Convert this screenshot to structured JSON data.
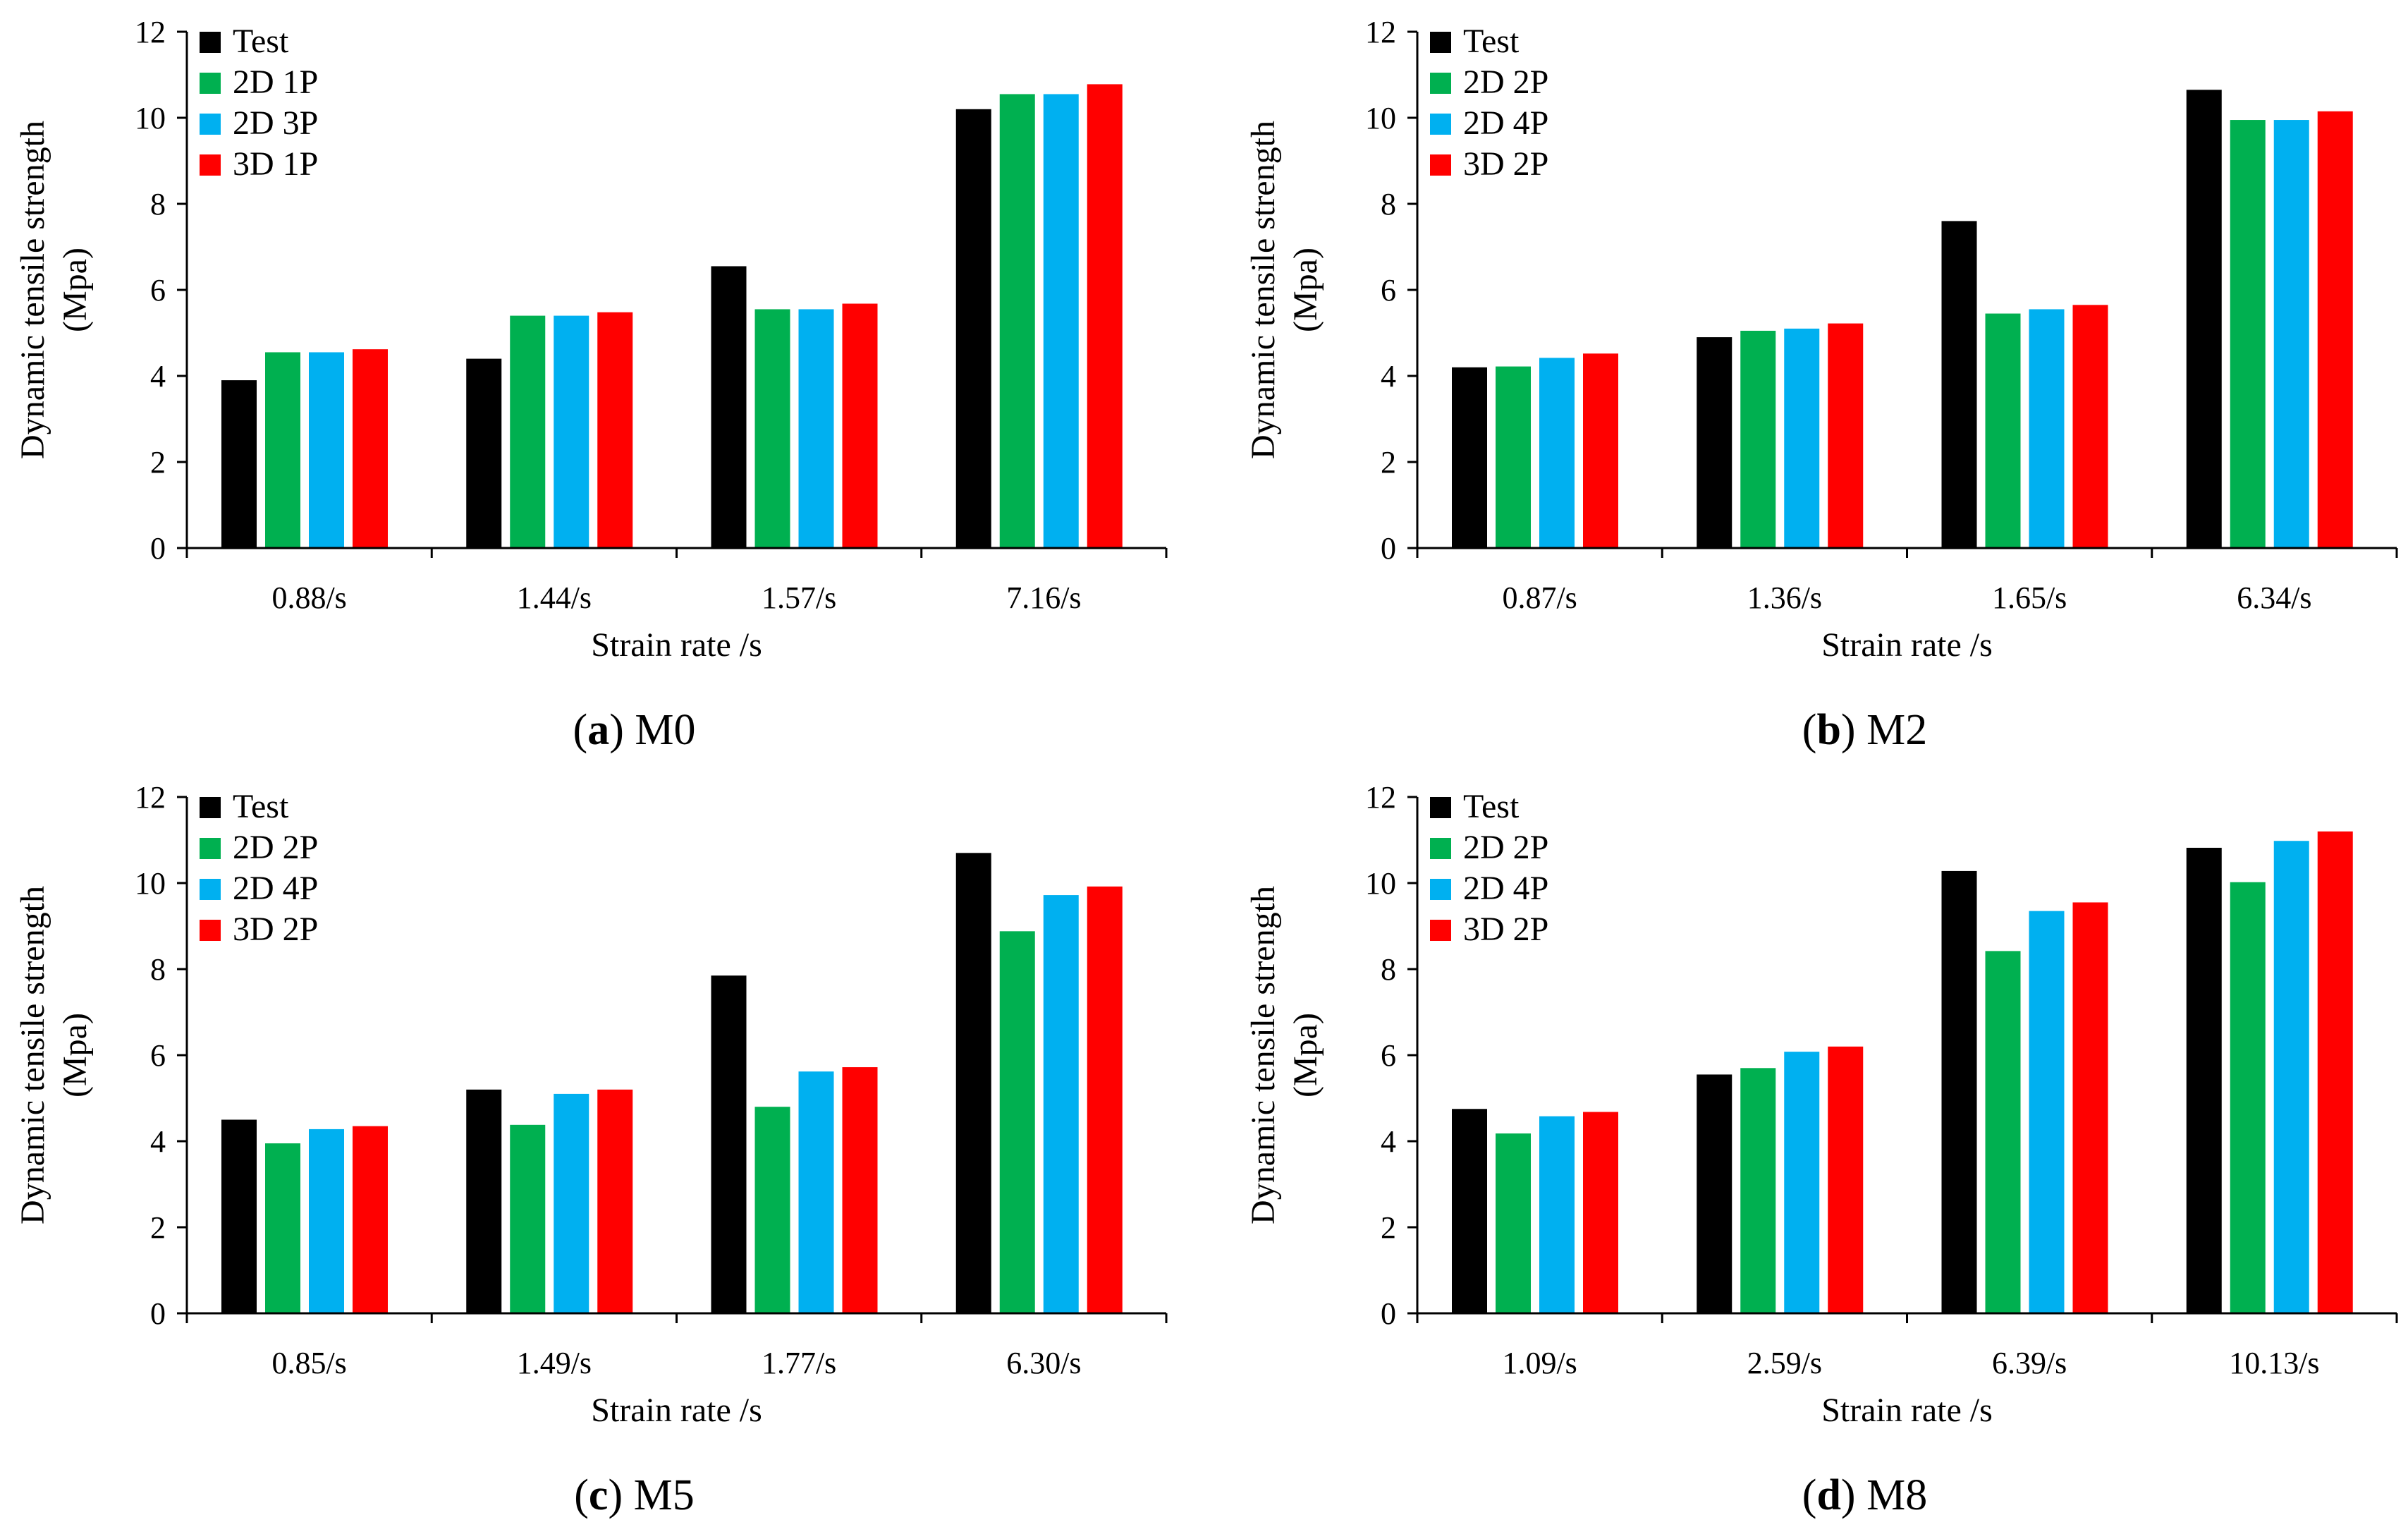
{
  "chart_data": [
    {
      "type": "bar",
      "caption": {
        "open": "(",
        "letter": "a",
        "close": ")",
        "name": "M0"
      },
      "categories": [
        "0.88/s",
        "1.44/s",
        "1.57/s",
        "7.16/s"
      ],
      "series": [
        {
          "name": "Test",
          "color": "#000000",
          "values": [
            3.9,
            4.4,
            6.55,
            10.2
          ]
        },
        {
          "name": "2D 1P",
          "color": "#00b050",
          "values": [
            4.55,
            5.4,
            5.55,
            10.55
          ]
        },
        {
          "name": "2D 3P",
          "color": "#00b0f0",
          "values": [
            4.55,
            5.4,
            5.55,
            10.55
          ]
        },
        {
          "name": "3D 1P",
          "color": "#ff0000",
          "values": [
            4.62,
            5.48,
            5.68,
            10.78
          ]
        }
      ],
      "xlabel": "Strain rate /s",
      "ylabel": [
        "Dynamic tensile strength",
        "(Mpa)"
      ],
      "ylim": [
        0,
        12
      ],
      "yticks": [
        "0",
        "2",
        "4",
        "6",
        "8",
        "10",
        "12"
      ],
      "legend": "top-left"
    },
    {
      "type": "bar",
      "caption": {
        "open": "(",
        "letter": "b",
        "close": ")",
        "name": "M2"
      },
      "categories": [
        "0.87/s",
        "1.36/s",
        "1.65/s",
        "6.34/s"
      ],
      "series": [
        {
          "name": "Test",
          "color": "#000000",
          "values": [
            4.2,
            4.9,
            7.6,
            10.65
          ]
        },
        {
          "name": "2D 2P",
          "color": "#00b050",
          "values": [
            4.22,
            5.05,
            5.45,
            9.95
          ]
        },
        {
          "name": "2D 4P",
          "color": "#00b0f0",
          "values": [
            4.42,
            5.1,
            5.55,
            9.95
          ]
        },
        {
          "name": "3D 2P",
          "color": "#ff0000",
          "values": [
            4.52,
            5.22,
            5.65,
            10.15
          ]
        }
      ],
      "xlabel": "Strain rate /s",
      "ylabel": [
        "Dynamic tensile strength",
        "(Mpa)"
      ],
      "ylim": [
        0,
        12
      ],
      "yticks": [
        "0",
        "2",
        "4",
        "6",
        "8",
        "10",
        "12"
      ],
      "legend": "top-left"
    },
    {
      "type": "bar",
      "caption": {
        "open": "(",
        "letter": "c",
        "close": ")",
        "name": "M5"
      },
      "categories": [
        "0.85/s",
        "1.49/s",
        "1.77/s",
        "6.30/s"
      ],
      "series": [
        {
          "name": "Test",
          "color": "#000000",
          "values": [
            4.5,
            5.2,
            7.85,
            10.7
          ]
        },
        {
          "name": "2D 2P",
          "color": "#00b050",
          "values": [
            3.95,
            4.38,
            4.8,
            8.88
          ]
        },
        {
          "name": "2D 4P",
          "color": "#00b0f0",
          "values": [
            4.28,
            5.1,
            5.62,
            9.72
          ]
        },
        {
          "name": "3D 2P",
          "color": "#ff0000",
          "values": [
            4.35,
            5.2,
            5.72,
            9.92
          ]
        }
      ],
      "xlabel": "Strain rate /s",
      "ylabel": [
        "Dynamic tensile strength",
        "(Mpa)"
      ],
      "ylim": [
        0,
        12
      ],
      "yticks": [
        "0",
        "2",
        "4",
        "6",
        "8",
        "10",
        "12"
      ],
      "legend": "top-left"
    },
    {
      "type": "bar",
      "caption": {
        "open": "(",
        "letter": "d",
        "close": ")",
        "name": "M8"
      },
      "categories": [
        "1.09/s",
        "2.59/s",
        "6.39/s",
        "10.13/s"
      ],
      "series": [
        {
          "name": "Test",
          "color": "#000000",
          "values": [
            4.75,
            5.55,
            10.28,
            10.82
          ]
        },
        {
          "name": "2D 2P",
          "color": "#00b050",
          "values": [
            4.18,
            5.7,
            8.42,
            10.02
          ]
        },
        {
          "name": "2D 4P",
          "color": "#00b0f0",
          "values": [
            4.58,
            6.08,
            9.35,
            10.98
          ]
        },
        {
          "name": "3D 2P",
          "color": "#ff0000",
          "values": [
            4.68,
            6.2,
            9.55,
            11.2
          ]
        }
      ],
      "xlabel": "Strain rate /s",
      "ylabel": [
        "Dynamic tensile strength",
        "(Mpa)"
      ],
      "ylim": [
        0,
        12
      ],
      "yticks": [
        "0",
        "2",
        "4",
        "6",
        "8",
        "10",
        "12"
      ],
      "legend": "top-left"
    }
  ]
}
